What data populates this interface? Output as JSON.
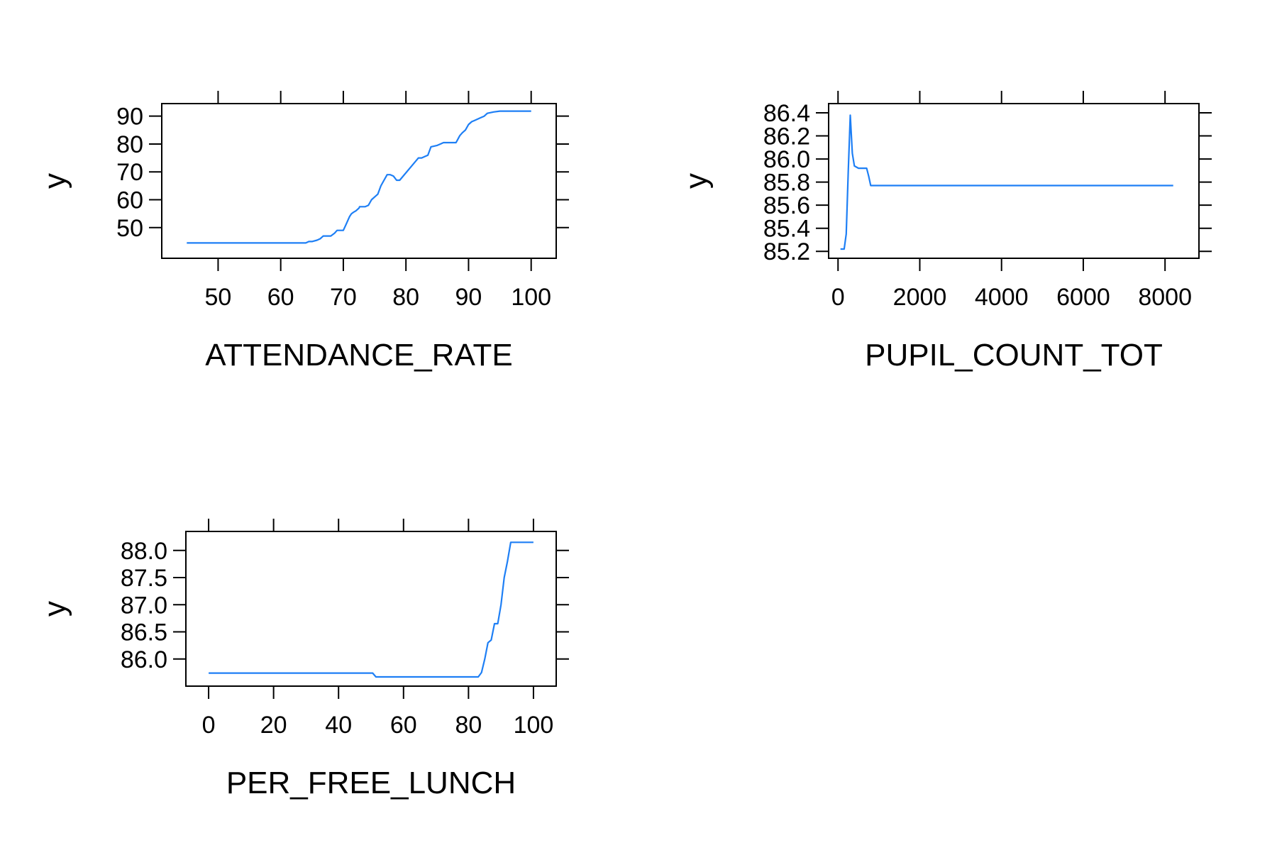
{
  "chart_data": [
    {
      "type": "line",
      "xlabel": "ATTENDANCE_RATE",
      "ylabel": "y",
      "xlim": [
        41,
        104
      ],
      "ylim": [
        39,
        94.5
      ],
      "xticks": [
        50,
        60,
        70,
        80,
        90,
        100
      ],
      "xtick_labels": [
        "50",
        "60",
        "70",
        "80",
        "90",
        "100"
      ],
      "yticks": [
        50,
        60,
        70,
        80,
        90
      ],
      "ytick_labels": [
        "50",
        "60",
        "70",
        "80",
        "90"
      ],
      "color": "#1E7FF5",
      "x": [
        45,
        64,
        64.5,
        65,
        65.8,
        66.3,
        66.8,
        67,
        68,
        68.6,
        69,
        69.6,
        70,
        70.4,
        71,
        71.3,
        71.6,
        72,
        72.5,
        72.6,
        73.5,
        74,
        74.5,
        75,
        75.5,
        76,
        76.5,
        77,
        77.5,
        78,
        78.5,
        79,
        82,
        82.5,
        83,
        83.5,
        84,
        85,
        85.5,
        86,
        87,
        88,
        88.6,
        89,
        89.5,
        90,
        90.5,
        91,
        92,
        92.5,
        93,
        94,
        95,
        100
      ],
      "values": [
        44.5,
        44.5,
        45,
        45,
        45.5,
        46,
        47,
        47,
        47,
        48,
        49,
        49,
        49,
        51,
        54,
        55,
        55.5,
        56,
        57,
        57.5,
        57.5,
        58,
        60,
        61,
        62,
        65,
        67,
        69,
        69,
        68.5,
        67,
        67,
        75,
        75,
        75.5,
        76,
        79,
        79.5,
        80,
        80.5,
        80.5,
        80.5,
        83,
        84,
        85,
        87,
        88,
        88.5,
        89.5,
        90,
        91,
        91.5,
        91.8,
        91.8
      ]
    },
    {
      "type": "line",
      "xlabel": "PUPIL_COUNT_TOT",
      "ylabel": "y",
      "xlim": [
        -230,
        8830
      ],
      "ylim": [
        85.14,
        86.48
      ],
      "xticks": [
        0,
        2000,
        4000,
        6000,
        8000
      ],
      "xtick_labels": [
        "0",
        "2000",
        "4000",
        "6000",
        "8000"
      ],
      "yticks": [
        85.2,
        85.4,
        85.6,
        85.8,
        86.0,
        86.2,
        86.4
      ],
      "ytick_labels": [
        "85.2",
        "85.4",
        "85.6",
        "85.8",
        "86.0",
        "86.2",
        "86.4"
      ],
      "color": "#1E7FF5",
      "x": [
        60,
        150,
        200,
        250,
        300,
        350,
        400,
        450,
        500,
        600,
        700,
        750,
        800,
        8200
      ],
      "values": [
        85.22,
        85.22,
        85.35,
        85.9,
        86.38,
        86.05,
        85.94,
        85.93,
        85.92,
        85.92,
        85.92,
        85.85,
        85.77,
        85.77
      ]
    },
    {
      "type": "line",
      "xlabel": "PER_FREE_LUNCH",
      "ylabel": "y",
      "xlim": [
        -7,
        107
      ],
      "ylim": [
        85.5,
        88.35
      ],
      "xticks": [
        0,
        20,
        40,
        60,
        80,
        100
      ],
      "xtick_labels": [
        "0",
        "20",
        "40",
        "60",
        "80",
        "100"
      ],
      "yticks": [
        86.0,
        86.5,
        87.0,
        87.5,
        88.0
      ],
      "ytick_labels": [
        "86.0",
        "86.5",
        "87.0",
        "87.5",
        "88.0"
      ],
      "color": "#1E7FF5",
      "x": [
        0,
        50.5,
        51.5,
        83,
        84,
        85,
        86,
        87,
        88,
        89,
        90,
        91,
        92,
        93,
        100
      ],
      "values": [
        85.74,
        85.74,
        85.67,
        85.67,
        85.75,
        86.0,
        86.3,
        86.35,
        86.65,
        86.65,
        87.0,
        87.5,
        87.8,
        88.15,
        88.15
      ]
    }
  ]
}
